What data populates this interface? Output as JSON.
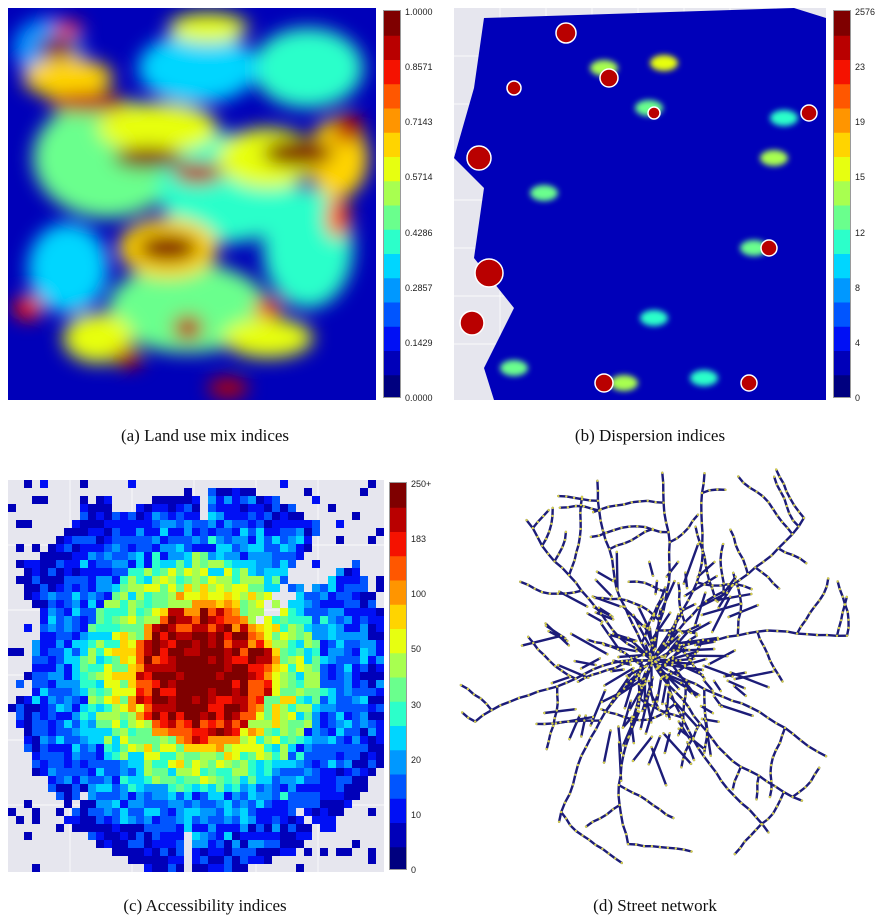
{
  "palette": [
    "#00007f",
    "#0000b9",
    "#0010f5",
    "#0055ff",
    "#0098ff",
    "#00d6ff",
    "#2cffca",
    "#6aff8d",
    "#a8ff50",
    "#e7ff10",
    "#ffd400",
    "#ff9500",
    "#ff5700",
    "#f51200",
    "#b90000",
    "#7f0000"
  ],
  "background_gray": "#e6e6ee",
  "panels": [
    {
      "id": "a",
      "caption": "(a) Land use mix indices",
      "colorbar_ticks": [
        "1.0000",
        "0.8571",
        "0.7143",
        "0.5714",
        "0.4286",
        "0.2857",
        "0.1429",
        "0.0000"
      ]
    },
    {
      "id": "b",
      "caption": "(b) Dispersion indices",
      "colorbar_ticks": [
        "2576",
        "23",
        "19",
        "15",
        "12",
        "8",
        "4",
        "0"
      ]
    },
    {
      "id": "c",
      "caption": "(c) Accessibility indices",
      "colorbar_ticks": [
        "250+",
        "183",
        "100",
        "50",
        "30",
        "20",
        "10",
        "0"
      ]
    },
    {
      "id": "d",
      "caption": "(d) Street network",
      "colorbar_ticks": []
    }
  ],
  "chart_data": [
    {
      "type": "heatmap",
      "title": "(a) Land use mix indices",
      "colorbar_range": [
        0,
        1
      ],
      "colorbar_ticks": [
        1.0,
        0.8571,
        0.7143,
        0.5714,
        0.4286,
        0.2857,
        0.1429,
        0.0
      ]
    },
    {
      "type": "heatmap",
      "title": "(b) Dispersion indices",
      "colorbar_ticks": [
        "2576",
        "23",
        "19",
        "15",
        "12",
        "8",
        "4",
        "0"
      ]
    },
    {
      "type": "heatmap",
      "title": "(c) Accessibility indices",
      "colorbar_ticks": [
        "250+",
        "183",
        "100",
        "50",
        "30",
        "20",
        "10",
        "0"
      ]
    },
    {
      "type": "other",
      "title": "(d) Street network",
      "street_color": "#1c1c78",
      "node_color": "#d8d24a"
    }
  ]
}
